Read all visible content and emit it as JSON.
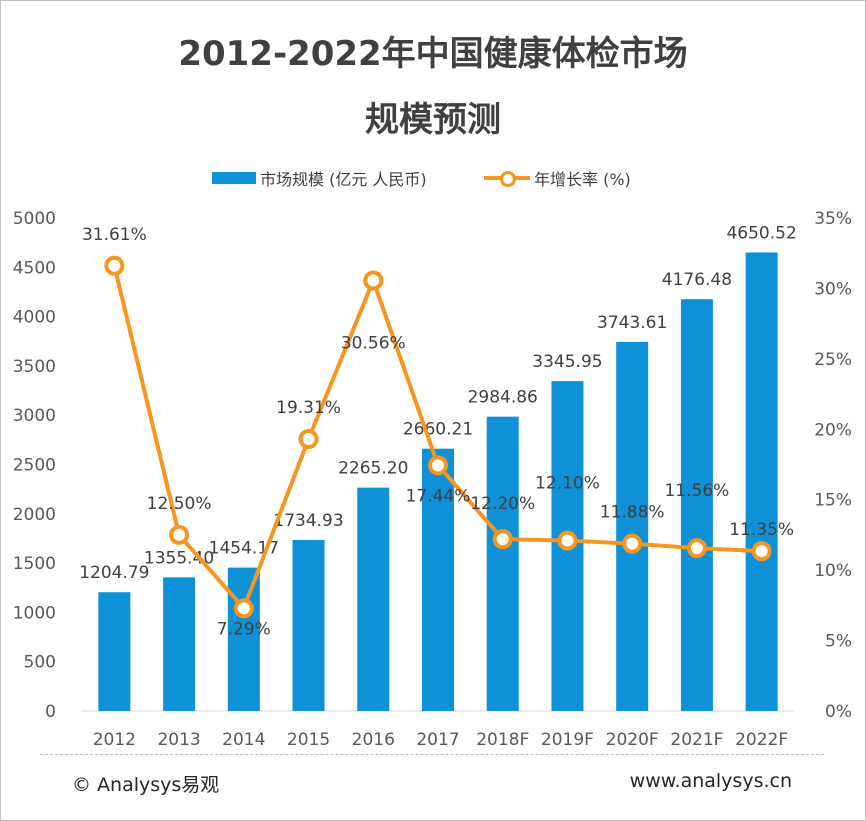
{
  "title_line1": "2012-2022年中国健康体检市场",
  "title_line2": "规模预测",
  "legend": {
    "bar_label": "市场规模 (亿元 人民币)",
    "line_label": "年增长率 (%)"
  },
  "footer": {
    "left": "© Analysys易观",
    "right": "www.analysys.cn"
  },
  "colors": {
    "bar": "#0f91d7",
    "line": "#f7961e",
    "text": "#595959",
    "axis": "#d9d9d9"
  },
  "chart_data": {
    "type": "bar",
    "categories": [
      "2012",
      "2013",
      "2014",
      "2015",
      "2016",
      "2017",
      "2018F",
      "2019F",
      "2020F",
      "2021F",
      "2022F"
    ],
    "series": [
      {
        "name": "市场规模 (亿元 人民币)",
        "type": "bar",
        "axis": "left",
        "values": [
          1204.79,
          1355.4,
          1454.17,
          1734.93,
          2265.2,
          2660.21,
          2984.86,
          3345.95,
          3743.61,
          4176.48,
          4650.52
        ],
        "labels": [
          "1204.79",
          "1355.40",
          "1454.17",
          "1734.93",
          "2265.20",
          "2660.21",
          "2984.86",
          "3345.95",
          "3743.61",
          "4176.48",
          "4650.52"
        ]
      },
      {
        "name": "年增长率 (%)",
        "type": "line",
        "axis": "right",
        "values": [
          31.61,
          12.5,
          7.29,
          19.31,
          30.56,
          17.44,
          12.2,
          12.1,
          11.88,
          11.56,
          11.35
        ],
        "labels": [
          "31.61%",
          "12.50%",
          "7.29%",
          "19.31%",
          "30.56%",
          "17.44%",
          "12.20%",
          "12.10%",
          "11.88%",
          "11.56%",
          "11.35%"
        ]
      }
    ],
    "y_left": {
      "min": 0,
      "max": 5000,
      "step": 500,
      "ticks": [
        "0",
        "500",
        "1000",
        "1500",
        "2000",
        "2500",
        "3000",
        "3500",
        "4000",
        "4500",
        "5000"
      ]
    },
    "y_right": {
      "min": 0,
      "max": 35,
      "step": 5,
      "ticks": [
        "0%",
        "5%",
        "10%",
        "15%",
        "20%",
        "25%",
        "30%",
        "35%"
      ]
    },
    "grid": false,
    "legend_position": "top"
  }
}
